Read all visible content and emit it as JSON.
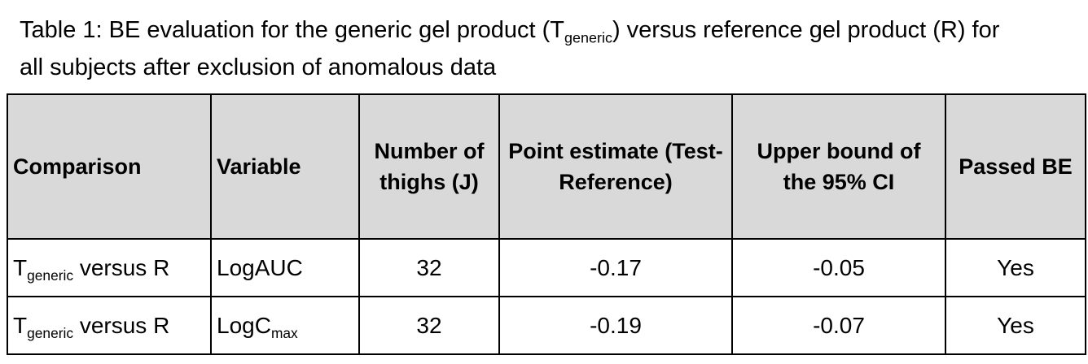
{
  "title": [
    "Table 1: BE evaluation for the generic gel product (T",
    "generic",
    ") versus reference gel product (R) for all subjects after exclusion of anomalous data"
  ],
  "table": {
    "header": [
      "Comparison",
      "Variable",
      "Number of thighs (J)",
      "Point estimate (Test-Reference)",
      "Upper bound of the 95% CI",
      "Passed BE"
    ],
    "rows": [
      [
        [
          "T",
          "generic",
          " versus R"
        ],
        "LogAUC",
        "32",
        "-0.17",
        "-0.05",
        "Yes"
      ],
      [
        [
          "T",
          "generic",
          " versus R"
        ],
        [
          "LogC",
          "max"
        ],
        "32",
        "-0.19",
        "-0.07",
        "Yes"
      ]
    ]
  }
}
